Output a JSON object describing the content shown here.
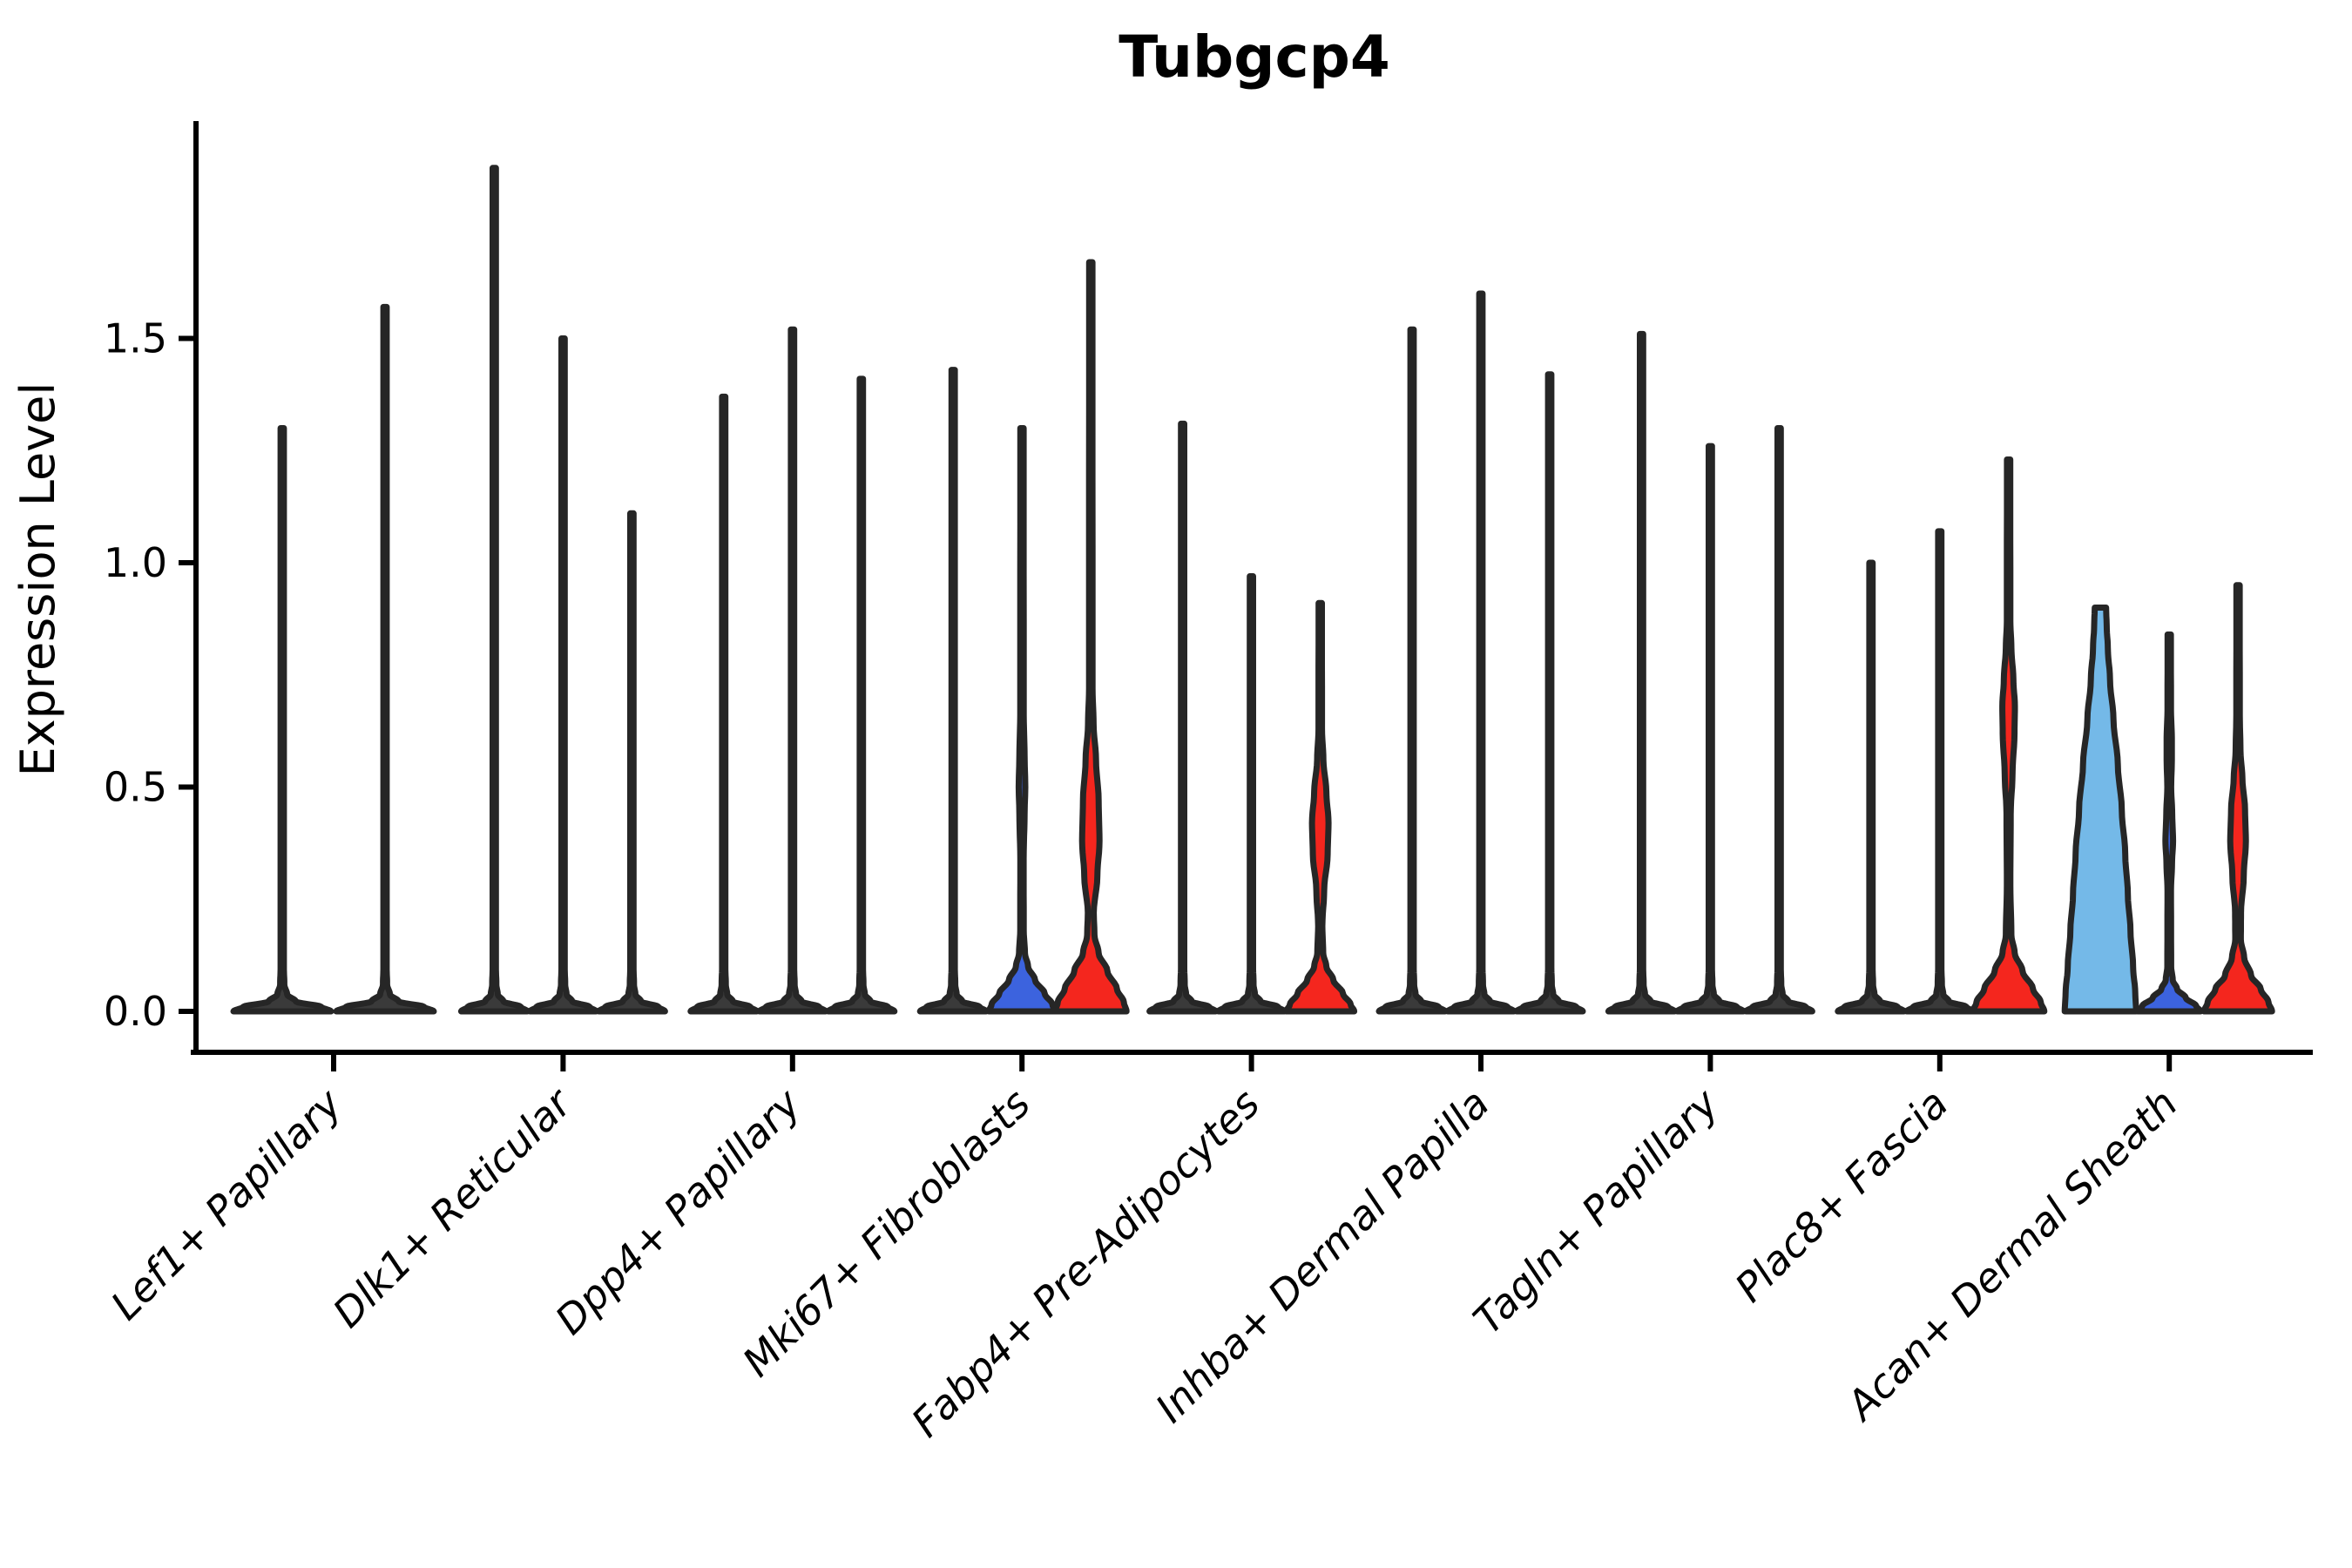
{
  "chart_data": {
    "type": "violin",
    "title": "Tubgcp4",
    "ylabel": "Expression Level",
    "xlabel": "",
    "ylim": [
      0,
      1.98
    ],
    "yticks": [
      0.0,
      0.5,
      1.0,
      1.5
    ],
    "ytick_labels": [
      "0.0",
      "0.5",
      "1.0",
      "1.5"
    ],
    "grid": false,
    "legend": "none",
    "categories": [
      "Lef1+ Papillary",
      "Dlk1+ Reticular",
      "Dpp4+ Papillary",
      "Mki67+ Fibroblasts",
      "Fabp4+ Pre-Adipocytes",
      "Inhba+ Dermal Papilla",
      "Tagln+ Papillary",
      "Plac8+ Fascia",
      "Acan+ Dermal Sheath"
    ],
    "colors": {
      "red": "#f4261e",
      "royal_blue": "#3c63de",
      "sky_blue": "#74b9e8",
      "violin_dark": "#3a3a3a",
      "outline": "#262626",
      "text": "#000000"
    },
    "groups": [
      {
        "label": "Lef1+ Papillary",
        "violins": [
          {
            "color": "dark",
            "max": 1.3,
            "half_width": 56,
            "shape": "spike"
          },
          {
            "color": "dark",
            "max": 1.57,
            "half_width": 56,
            "shape": "spike"
          }
        ]
      },
      {
        "label": "Dlk1+ Reticular",
        "violins": [
          {
            "color": "dark",
            "max": 1.88,
            "half_width": 38,
            "shape": "spike"
          },
          {
            "color": "dark",
            "max": 1.5,
            "half_width": 38,
            "shape": "spike"
          },
          {
            "color": "dark",
            "max": 1.11,
            "half_width": 38,
            "shape": "spike"
          }
        ]
      },
      {
        "label": "Dpp4+ Papillary",
        "violins": [
          {
            "color": "dark",
            "max": 1.37,
            "half_width": 38,
            "shape": "spike"
          },
          {
            "color": "dark",
            "max": 1.52,
            "half_width": 38,
            "shape": "spike"
          },
          {
            "color": "dark",
            "max": 1.41,
            "half_width": 38,
            "shape": "spike"
          }
        ]
      },
      {
        "label": "Mki67+ Fibroblasts",
        "violins": [
          {
            "color": "dark",
            "max": 1.43,
            "half_width": 38,
            "shape": "spike"
          },
          {
            "color": "blue",
            "max": 1.3,
            "shape": "profile",
            "profile": [
              [
                0,
                38
              ],
              [
                0.015,
                35
              ],
              [
                0.04,
                26
              ],
              [
                0.07,
                15
              ],
              [
                0.1,
                7
              ],
              [
                0.13,
                3.4
              ],
              [
                0.18,
                2.0
              ],
              [
                0.34,
                1.9
              ],
              [
                0.44,
                3.0
              ],
              [
                0.5,
                3.8
              ],
              [
                0.57,
                3.0
              ],
              [
                0.66,
                2.0
              ],
              [
                1.3,
                1.9
              ]
            ]
          },
          {
            "color": "red",
            "max": 1.67,
            "shape": "profile",
            "profile": [
              [
                0,
                41
              ],
              [
                0.02,
                38
              ],
              [
                0.05,
                30
              ],
              [
                0.09,
                19
              ],
              [
                0.13,
                9
              ],
              [
                0.17,
                4.2
              ],
              [
                0.22,
                3.4
              ],
              [
                0.3,
                7.5
              ],
              [
                0.38,
                10
              ],
              [
                0.47,
                9
              ],
              [
                0.56,
                6
              ],
              [
                0.64,
                3.2
              ],
              [
                0.72,
                2.0
              ],
              [
                1.67,
                1.9
              ]
            ]
          }
        ]
      },
      {
        "label": "Fabp4+ Pre-Adipocytes",
        "violins": [
          {
            "color": "dark",
            "max": 1.31,
            "half_width": 38,
            "shape": "spike"
          },
          {
            "color": "dark",
            "max": 0.97,
            "half_width": 38,
            "shape": "spike"
          },
          {
            "color": "red",
            "max": 0.91,
            "shape": "profile",
            "profile": [
              [
                0,
                39
              ],
              [
                0.015,
                35
              ],
              [
                0.04,
                26
              ],
              [
                0.07,
                15
              ],
              [
                0.1,
                7
              ],
              [
                0.13,
                3.4
              ],
              [
                0.19,
                2.4
              ],
              [
                0.27,
                4.5
              ],
              [
                0.35,
                8.5
              ],
              [
                0.42,
                9.5
              ],
              [
                0.49,
                7
              ],
              [
                0.56,
                3.6
              ],
              [
                0.63,
                2.0
              ],
              [
                0.91,
                1.9
              ]
            ]
          }
        ]
      },
      {
        "label": "Inhba+ Dermal Papilla",
        "violins": [
          {
            "color": "dark",
            "max": 1.52,
            "half_width": 38,
            "shape": "spike"
          },
          {
            "color": "dark",
            "max": 1.6,
            "half_width": 38,
            "shape": "spike"
          },
          {
            "color": "dark",
            "max": 1.42,
            "half_width": 38,
            "shape": "spike"
          }
        ]
      },
      {
        "label": "Tagln+ Papillary",
        "violins": [
          {
            "color": "dark",
            "max": 1.51,
            "half_width": 38,
            "shape": "spike"
          },
          {
            "color": "dark",
            "max": 1.26,
            "half_width": 38,
            "shape": "spike"
          },
          {
            "color": "dark",
            "max": 1.3,
            "half_width": 38,
            "shape": "spike"
          }
        ]
      },
      {
        "label": "Plac8+ Fascia",
        "violins": [
          {
            "color": "dark",
            "max": 1.0,
            "half_width": 38,
            "shape": "spike"
          },
          {
            "color": "dark",
            "max": 1.07,
            "half_width": 38,
            "shape": "spike"
          },
          {
            "color": "red",
            "max": 1.23,
            "shape": "profile",
            "profile": [
              [
                0,
                41
              ],
              [
                0.02,
                37
              ],
              [
                0.05,
                28
              ],
              [
                0.09,
                16
              ],
              [
                0.13,
                7
              ],
              [
                0.17,
                3.2
              ],
              [
                0.28,
                2.0
              ],
              [
                0.44,
                2.4
              ],
              [
                0.53,
                4.5
              ],
              [
                0.62,
                6.8
              ],
              [
                0.68,
                7.2
              ],
              [
                0.74,
                5.5
              ],
              [
                0.81,
                3.2
              ],
              [
                0.87,
                2.0
              ],
              [
                1.23,
                1.9
              ]
            ]
          }
        ]
      },
      {
        "label": "Acan+ Dermal Sheath",
        "violins": [
          {
            "color": "skyblue",
            "max": 0.9,
            "shape": "profile",
            "flat_top": true,
            "profile": [
              [
                0,
                41
              ],
              [
                0.04,
                40
              ],
              [
                0.1,
                37.5
              ],
              [
                0.18,
                34.5
              ],
              [
                0.26,
                31.5
              ],
              [
                0.35,
                28.5
              ],
              [
                0.45,
                24.5
              ],
              [
                0.55,
                20
              ],
              [
                0.65,
                15
              ],
              [
                0.74,
                11
              ],
              [
                0.81,
                8.5
              ],
              [
                0.86,
                7.2
              ],
              [
                0.9,
                6.5
              ]
            ]
          },
          {
            "color": "blue",
            "max": 0.84,
            "shape": "profile",
            "profile": [
              [
                0,
                36
              ],
              [
                0.012,
                31
              ],
              [
                0.03,
                19
              ],
              [
                0.05,
                9
              ],
              [
                0.07,
                4
              ],
              [
                0.1,
                2.2
              ],
              [
                0.27,
                2.0
              ],
              [
                0.33,
                3.2
              ],
              [
                0.38,
                4.4
              ],
              [
                0.44,
                3.4
              ],
              [
                0.5,
                2.2
              ],
              [
                0.56,
                3.0
              ],
              [
                0.61,
                3.0
              ],
              [
                0.67,
                2.0
              ],
              [
                0.84,
                1.9
              ]
            ]
          },
          {
            "color": "red",
            "max": 0.95,
            "shape": "profile",
            "profile": [
              [
                0,
                39
              ],
              [
                0.02,
                35
              ],
              [
                0.05,
                26
              ],
              [
                0.08,
                15
              ],
              [
                0.12,
                7
              ],
              [
                0.16,
                3.2
              ],
              [
                0.22,
                3.4
              ],
              [
                0.3,
                6.5
              ],
              [
                0.38,
                9
              ],
              [
                0.45,
                8
              ],
              [
                0.52,
                5
              ],
              [
                0.58,
                2.8
              ],
              [
                0.66,
                2.0
              ],
              [
                0.95,
                1.9
              ]
            ]
          }
        ]
      }
    ]
  }
}
